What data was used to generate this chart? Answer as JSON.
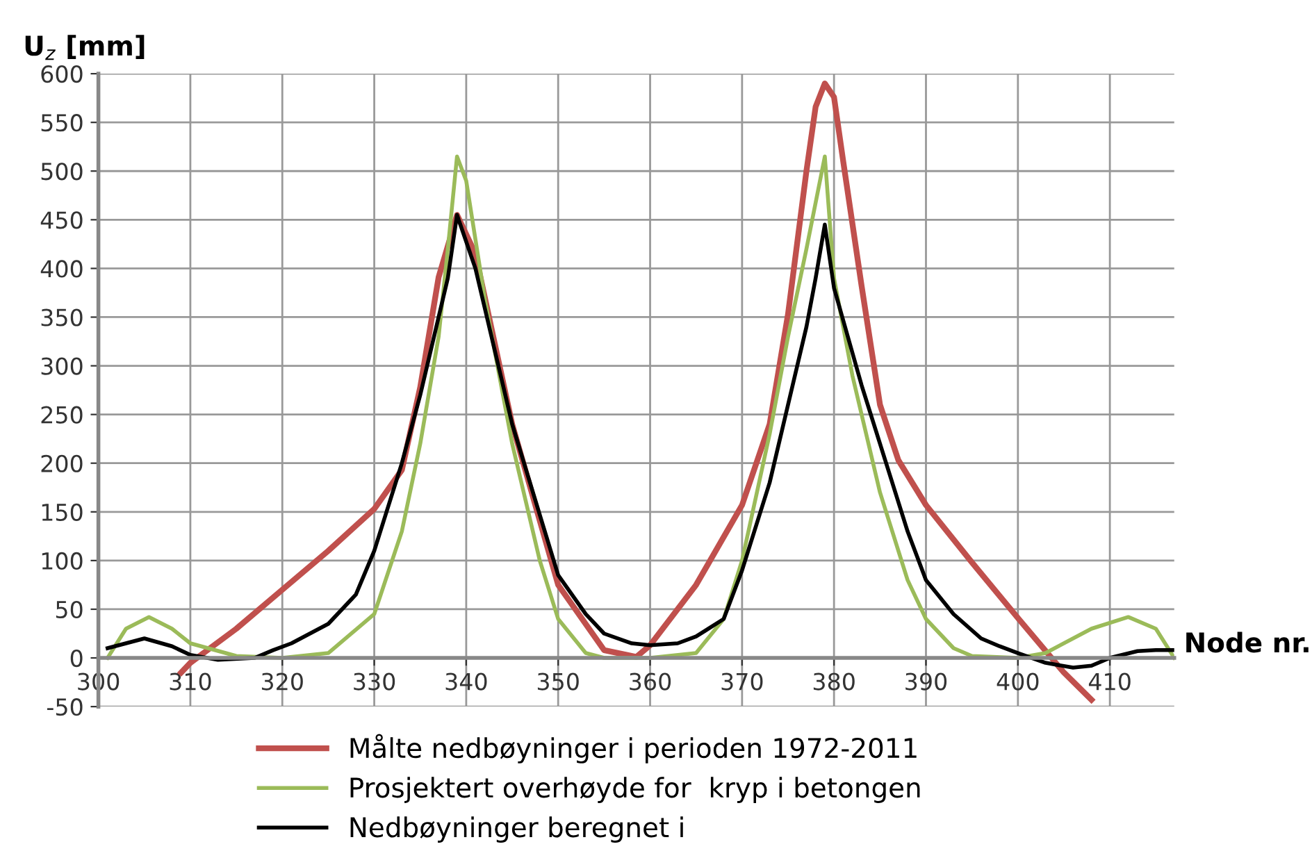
{
  "chart_data": {
    "type": "line",
    "ylabel": "U$_{z}$ [mm]",
    "xlabel": "Node nr.",
    "xlim": [
      300,
      417
    ],
    "xticks": [
      300,
      310,
      320,
      330,
      340,
      350,
      360,
      370,
      380,
      390,
      400,
      410
    ],
    "ylim": [
      -50,
      600
    ],
    "yticks": [
      -50,
      0,
      50,
      100,
      150,
      200,
      250,
      300,
      350,
      400,
      450,
      500,
      550,
      600
    ],
    "grid": true,
    "legend": "bottom",
    "marker": "none",
    "line_style": "solid",
    "series": [
      {
        "name": "Målte nedbøyninger i perioden 1972-2011",
        "color": "#c0504d",
        "x": [
          309,
          310,
          315,
          320,
          325,
          330,
          333,
          335,
          337,
          339,
          341,
          345,
          350,
          355,
          358.5,
          360,
          365,
          370,
          373,
          375,
          377,
          378,
          379,
          380,
          381,
          383,
          385,
          387,
          390,
          395,
          400,
          405,
          408
        ],
        "values": [
          -15,
          -5,
          30,
          70,
          110,
          153,
          193,
          278,
          391,
          455,
          415,
          240,
          75,
          8,
          1,
          13,
          75,
          157,
          240,
          353,
          500,
          566,
          590,
          576,
          510,
          382,
          260,
          203,
          157,
          98,
          41,
          -15,
          -43
        ]
      },
      {
        "name": "Prosjektert overhøyde for  kryp i betongen",
        "color": "#9bbb59",
        "x": [
          301,
          303,
          305.5,
          308,
          310,
          315,
          320,
          325,
          330,
          333,
          335,
          337,
          338,
          339,
          340,
          342,
          345,
          348,
          350,
          353,
          355,
          360,
          365,
          368,
          370,
          373,
          375,
          377,
          379,
          380,
          382,
          385,
          388,
          390,
          393,
          395,
          400,
          403,
          408,
          412,
          415,
          417
        ],
        "values": [
          0,
          30,
          42,
          30,
          15,
          2,
          0,
          5,
          45,
          130,
          220,
          330,
          420,
          515,
          490,
          370,
          220,
          100,
          40,
          5,
          0,
          0,
          5,
          40,
          100,
          230,
          330,
          420,
          515,
          390,
          290,
          170,
          80,
          40,
          10,
          2,
          0,
          5,
          30,
          42,
          30,
          0
        ]
      },
      {
        "name": "Nedbøyninger beregnet i",
        "color": "#000000",
        "x": [
          301,
          305,
          308,
          310,
          313,
          317,
          319,
          321,
          325,
          328,
          330,
          333,
          335,
          337,
          338,
          339,
          341,
          345,
          350,
          353,
          355,
          358,
          360,
          363,
          365,
          368,
          370,
          373,
          375,
          377,
          378,
          379,
          380,
          383,
          385,
          388,
          390,
          393,
          396,
          398,
          400,
          403,
          406,
          408,
          410,
          413,
          415,
          417
        ],
        "values": [
          10,
          20,
          12,
          3,
          -2,
          0,
          8,
          15,
          35,
          65,
          110,
          200,
          270,
          350,
          390,
          455,
          400,
          240,
          85,
          45,
          25,
          15,
          13,
          15,
          22,
          40,
          90,
          180,
          260,
          340,
          390,
          445,
          380,
          280,
          220,
          130,
          80,
          45,
          20,
          12,
          5,
          -5,
          -10,
          -8,
          0,
          7,
          8,
          8
        ]
      }
    ]
  }
}
